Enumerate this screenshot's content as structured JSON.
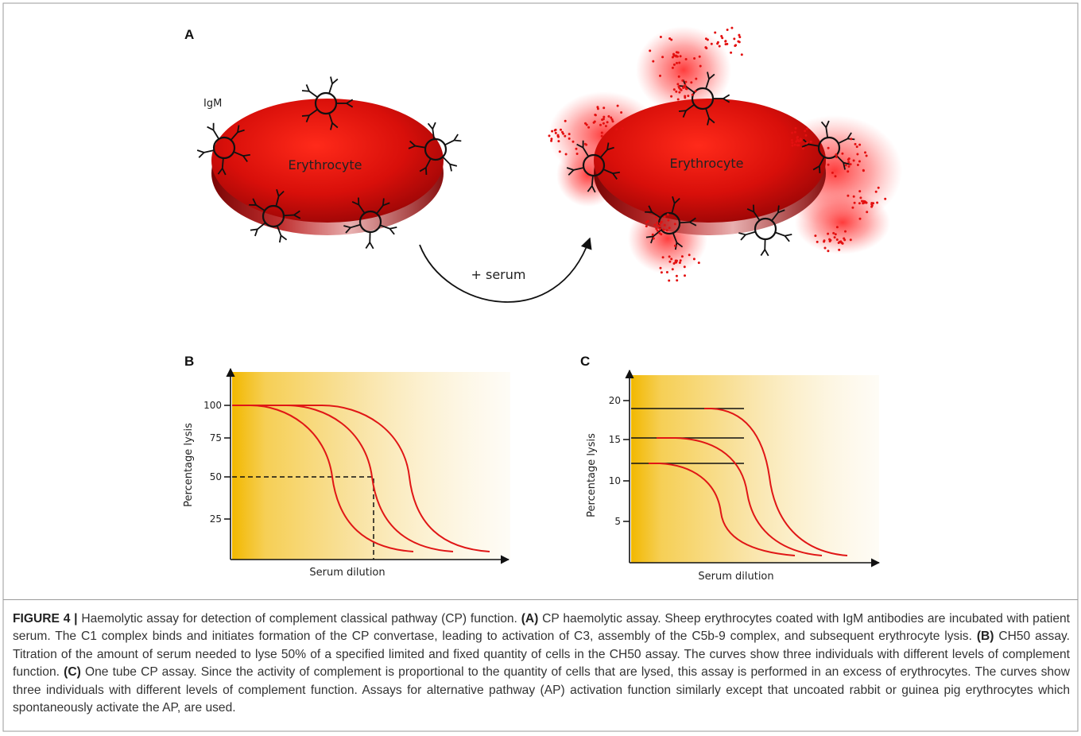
{
  "panel_a": {
    "letter": "A",
    "igm_label": "IgM",
    "cell_left_label": "Erythrocyte",
    "cell_right_label": "Erythrocyte",
    "arrow_label": "+ serum"
  },
  "panel_b": {
    "letter": "B",
    "ylabel": "Percentage lysis",
    "xlabel": "Serum dilution",
    "yticks": [
      "100",
      "75",
      "50",
      "25"
    ]
  },
  "panel_c": {
    "letter": "C",
    "ylabel": "Percentage lysis",
    "xlabel": "Serum dilution",
    "yticks": [
      "20",
      "15",
      "10",
      "5"
    ]
  },
  "caption": {
    "figure_label": "FIGURE 4 |",
    "intro": "Haemolytic assay for detection of complement classical pathway (CP) function.",
    "a_tag": "(A)",
    "a_text": "CP haemolytic assay. Sheep erythrocytes coated with IgM antibodies are incubated with patient serum. The C1 complex binds and initiates formation of the CP convertase, leading to activation of C3, assembly of the C5b-9 complex, and subsequent erythrocyte lysis.",
    "b_tag": "(B)",
    "b_text": "CH50 assay. Titration of the amount of serum needed to lyse 50% of a specified limited and fixed quantity of cells in the CH50 assay. The curves show three individuals with different levels of complement function.",
    "c_tag": "(C)",
    "c_text": "One tube CP assay. Since the activity of complement is proportional to the quantity of cells that are lysed, this assay is performed in an excess of erythrocytes. The curves show three individuals with different levels of complement function. Assays for alternative pathway (AP) activation function similarly except that uncoated rabbit or guinea pig erythrocytes which spontaneously activate the AP, are used."
  },
  "colors": {
    "cell_red": "#d31010",
    "curve_red": "#e01616",
    "gradient_gold": "#f2b800"
  }
}
